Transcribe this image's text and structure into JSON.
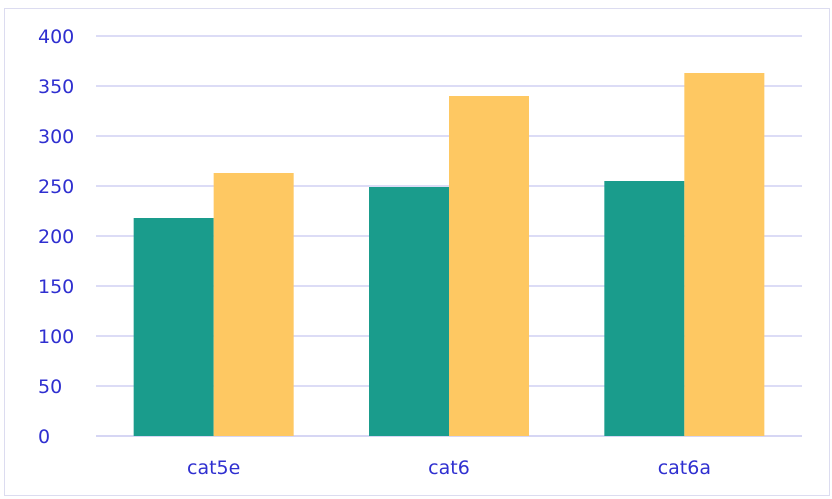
{
  "chart_data": {
    "type": "bar",
    "title": "",
    "xlabel": "",
    "ylabel": "",
    "categories": [
      "cat5e",
      "cat6",
      "cat6a"
    ],
    "series": [
      {
        "values": [
          218,
          249,
          255
        ],
        "color": "#1a9c8c"
      },
      {
        "values": [
          263,
          340,
          363
        ],
        "color": "#fec862"
      }
    ],
    "ylim": [
      0,
      400
    ],
    "yticks": [
      0,
      50,
      100,
      150,
      200,
      250,
      300,
      350,
      400
    ],
    "grid": true,
    "grid_color": "#c8c8f0",
    "axis_label_color": "#2f2fd0",
    "legend": "none"
  }
}
